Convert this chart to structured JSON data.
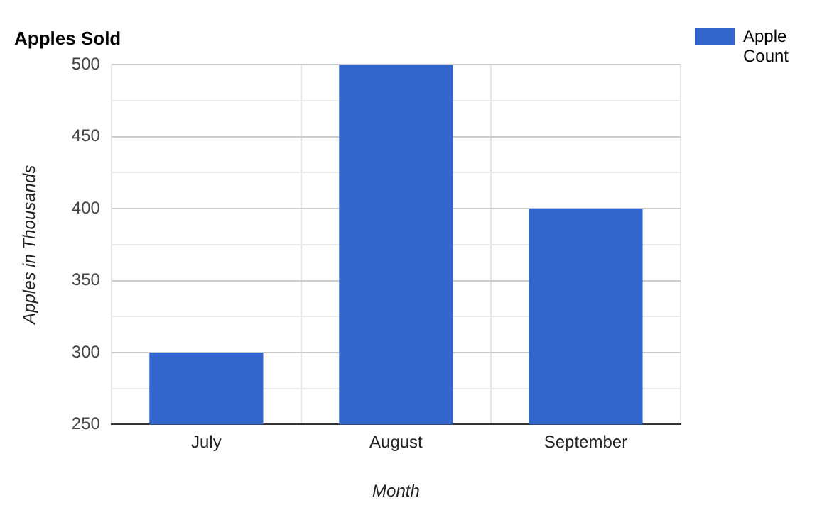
{
  "chart_data": {
    "type": "bar",
    "title": "Apples Sold",
    "xlabel": "Month",
    "ylabel": "Apples in Thousands",
    "categories": [
      "July",
      "August",
      "September"
    ],
    "series": [
      {
        "name": "Apple Count",
        "color": "#3366cc",
        "values": [
          300,
          500,
          400
        ]
      }
    ],
    "ylim": [
      250,
      500
    ],
    "yticks": [
      250,
      {
        "value": 275,
        "label": null
      },
      300,
      {
        "value": 325,
        "label": null
      },
      350,
      {
        "value": 375,
        "label": null
      },
      400,
      {
        "value": 425,
        "label": null
      },
      450,
      {
        "value": 475,
        "label": null
      },
      500
    ],
    "grid": true,
    "legend": "top right"
  }
}
